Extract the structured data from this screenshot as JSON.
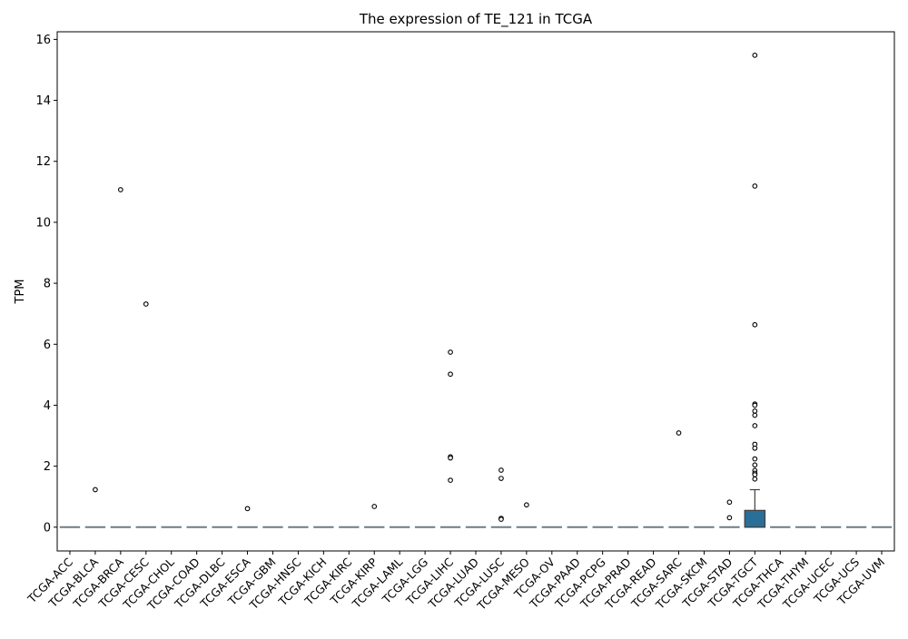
{
  "chart_data": {
    "type": "box",
    "title": "The expression of TE_121 in TCGA",
    "xlabel": "",
    "ylabel": "TPM",
    "ylim": [
      -0.78,
      16.25
    ],
    "y_ticks": [
      0,
      2,
      4,
      6,
      8,
      10,
      12,
      14,
      16
    ],
    "grid": false,
    "legend": "none",
    "colors": {
      "box_fill": "#2a6f97",
      "flat_box": "#6b7b86",
      "outlier": "#000000",
      "axis": "#000000"
    },
    "categories": [
      "TCGA-ACC",
      "TCGA-BLCA",
      "TCGA-BRCA",
      "TCGA-CESC",
      "TCGA-CHOL",
      "TCGA-COAD",
      "TCGA-DLBC",
      "TCGA-ESCA",
      "TCGA-GBM",
      "TCGA-HNSC",
      "TCGA-KICH",
      "TCGA-KIRC",
      "TCGA-KIRP",
      "TCGA-LAML",
      "TCGA-LGG",
      "TCGA-LIHC",
      "TCGA-LUAD",
      "TCGA-LUSC",
      "TCGA-MESO",
      "TCGA-OV",
      "TCGA-PAAD",
      "TCGA-PCPG",
      "TCGA-PRAD",
      "TCGA-READ",
      "TCGA-SARC",
      "TCGA-SKCM",
      "TCGA-STAD",
      "TCGA-TGCT",
      "TCGA-THCA",
      "TCGA-THYM",
      "TCGA-UCEC",
      "TCGA-UCS",
      "TCGA-UVM"
    ],
    "boxes": [
      {
        "q1": 0,
        "median": 0,
        "q3": 0,
        "whislo": 0,
        "whishi": 0,
        "outliers": []
      },
      {
        "q1": 0,
        "median": 0,
        "q3": 0,
        "whislo": 0,
        "whishi": 0,
        "outliers": [
          1.23
        ]
      },
      {
        "q1": 0,
        "median": 0,
        "q3": 0,
        "whislo": 0,
        "whishi": 0,
        "outliers": [
          11.07
        ]
      },
      {
        "q1": 0,
        "median": 0,
        "q3": 0,
        "whislo": 0,
        "whishi": 0,
        "outliers": [
          7.32
        ]
      },
      {
        "q1": 0,
        "median": 0,
        "q3": 0,
        "whislo": 0,
        "whishi": 0,
        "outliers": []
      },
      {
        "q1": 0,
        "median": 0,
        "q3": 0,
        "whislo": 0,
        "whishi": 0,
        "outliers": []
      },
      {
        "q1": 0,
        "median": 0,
        "q3": 0,
        "whislo": 0,
        "whishi": 0,
        "outliers": []
      },
      {
        "q1": 0,
        "median": 0,
        "q3": 0,
        "whislo": 0,
        "whishi": 0,
        "outliers": [
          0.61
        ]
      },
      {
        "q1": 0,
        "median": 0,
        "q3": 0,
        "whislo": 0,
        "whishi": 0,
        "outliers": []
      },
      {
        "q1": 0,
        "median": 0,
        "q3": 0,
        "whislo": 0,
        "whishi": 0,
        "outliers": []
      },
      {
        "q1": 0,
        "median": 0,
        "q3": 0,
        "whislo": 0,
        "whishi": 0,
        "outliers": []
      },
      {
        "q1": 0,
        "median": 0,
        "q3": 0,
        "whislo": 0,
        "whishi": 0,
        "outliers": []
      },
      {
        "q1": 0,
        "median": 0,
        "q3": 0,
        "whislo": 0,
        "whishi": 0,
        "outliers": [
          0.68
        ]
      },
      {
        "q1": 0,
        "median": 0,
        "q3": 0,
        "whislo": 0,
        "whishi": 0,
        "outliers": []
      },
      {
        "q1": 0,
        "median": 0,
        "q3": 0,
        "whislo": 0,
        "whishi": 0,
        "outliers": []
      },
      {
        "q1": 0,
        "median": 0,
        "q3": 0,
        "whislo": 0,
        "whishi": 0,
        "outliers": [
          5.74,
          5.02,
          2.31,
          2.27,
          1.54
        ]
      },
      {
        "q1": 0,
        "median": 0,
        "q3": 0,
        "whislo": 0,
        "whishi": 0,
        "outliers": []
      },
      {
        "q1": 0,
        "median": 0,
        "q3": 0,
        "whislo": 0,
        "whishi": 0,
        "outliers": [
          1.87,
          1.6,
          0.29,
          0.26
        ]
      },
      {
        "q1": 0,
        "median": 0,
        "q3": 0,
        "whislo": 0,
        "whishi": 0,
        "outliers": [
          0.73
        ]
      },
      {
        "q1": 0,
        "median": 0,
        "q3": 0,
        "whislo": 0,
        "whishi": 0,
        "outliers": []
      },
      {
        "q1": 0,
        "median": 0,
        "q3": 0,
        "whislo": 0,
        "whishi": 0,
        "outliers": []
      },
      {
        "q1": 0,
        "median": 0,
        "q3": 0,
        "whislo": 0,
        "whishi": 0,
        "outliers": []
      },
      {
        "q1": 0,
        "median": 0,
        "q3": 0,
        "whislo": 0,
        "whishi": 0,
        "outliers": []
      },
      {
        "q1": 0,
        "median": 0,
        "q3": 0,
        "whislo": 0,
        "whishi": 0,
        "outliers": []
      },
      {
        "q1": 0,
        "median": 0,
        "q3": 0,
        "whislo": 0,
        "whishi": 0,
        "outliers": [
          3.09
        ]
      },
      {
        "q1": 0,
        "median": 0,
        "q3": 0,
        "whislo": 0,
        "whishi": 0,
        "outliers": []
      },
      {
        "q1": 0,
        "median": 0,
        "q3": 0,
        "whislo": 0,
        "whishi": 0,
        "outliers": [
          0.82,
          0.31
        ]
      },
      {
        "q1": 0,
        "median": 0,
        "q3": 0.55,
        "whislo": 0,
        "whishi": 1.23,
        "outliers": [
          15.48,
          11.19,
          6.64,
          4.04,
          4.0,
          3.81,
          3.67,
          3.33,
          2.72,
          2.59,
          2.24,
          2.04,
          1.86,
          1.77,
          1.72,
          1.58
        ]
      },
      {
        "q1": 0,
        "median": 0,
        "q3": 0,
        "whislo": 0,
        "whishi": 0,
        "outliers": []
      },
      {
        "q1": 0,
        "median": 0,
        "q3": 0,
        "whislo": 0,
        "whishi": 0,
        "outliers": []
      },
      {
        "q1": 0,
        "median": 0,
        "q3": 0,
        "whislo": 0,
        "whishi": 0,
        "outliers": []
      },
      {
        "q1": 0,
        "median": 0,
        "q3": 0,
        "whislo": 0,
        "whishi": 0,
        "outliers": []
      },
      {
        "q1": 0,
        "median": 0,
        "q3": 0,
        "whislo": 0,
        "whishi": 0,
        "outliers": []
      }
    ]
  }
}
